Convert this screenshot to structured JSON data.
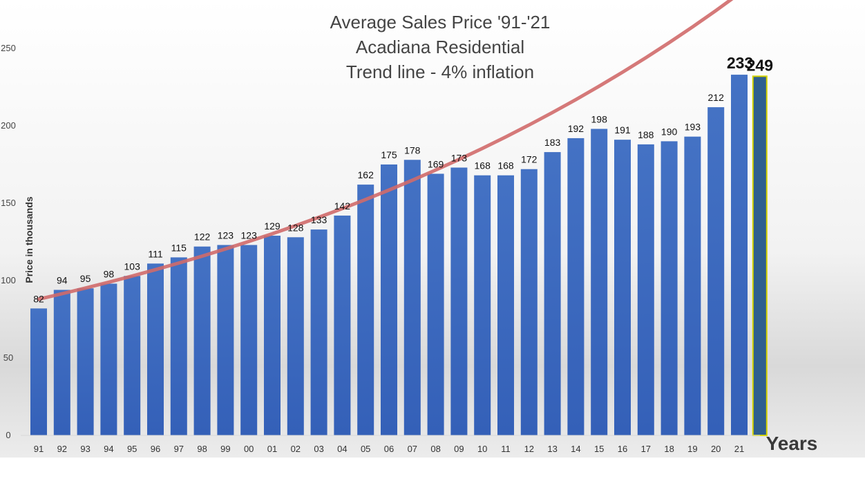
{
  "chart_data": {
    "type": "bar",
    "title_lines": [
      "Average Sales Price '91-'21",
      "Acadiana Residential",
      "Trend line - 4% inflation"
    ],
    "ylabel": "Price in thousands",
    "xlabel": "Years",
    "ylim": [
      0,
      250
    ],
    "yticks": [
      "0",
      "50",
      "100",
      "150",
      "200",
      "250"
    ],
    "categories": [
      "91",
      "92",
      "93",
      "94",
      "95",
      "96",
      "97",
      "98",
      "99",
      "00",
      "01",
      "02",
      "03",
      "04",
      "05",
      "06",
      "07",
      "08",
      "09",
      "10",
      "11",
      "12",
      "13",
      "14",
      "15",
      "16",
      "17",
      "18",
      "19",
      "20",
      "21"
    ],
    "values": [
      82,
      94,
      95,
      98,
      103,
      111,
      115,
      122,
      123,
      123,
      129,
      128,
      133,
      142,
      162,
      175,
      178,
      169,
      173,
      168,
      168,
      172,
      183,
      192,
      198,
      191,
      188,
      190,
      193,
      212,
      233
    ],
    "data_labels": [
      "82",
      "94",
      "95",
      "98",
      "103",
      "111",
      "115",
      "122",
      "123",
      "123",
      "129",
      "128",
      "133",
      "142",
      "162",
      "175",
      "178",
      "169",
      "173",
      "168",
      "168",
      "172",
      "183",
      "192",
      "198",
      "191",
      "188",
      "190",
      "193",
      "212",
      "233"
    ],
    "highlight_bar": {
      "value": 249,
      "label": "249",
      "fill": "#2f5f8f",
      "outline": "#d4d400"
    },
    "trend_line": {
      "label": "Trend line - 4% inflation",
      "color": "#d06a6a",
      "start": {
        "category": "91",
        "value": 88
      }
    },
    "colors": {
      "bar": "#3a66c0",
      "title": "#444444"
    },
    "grid": false
  }
}
